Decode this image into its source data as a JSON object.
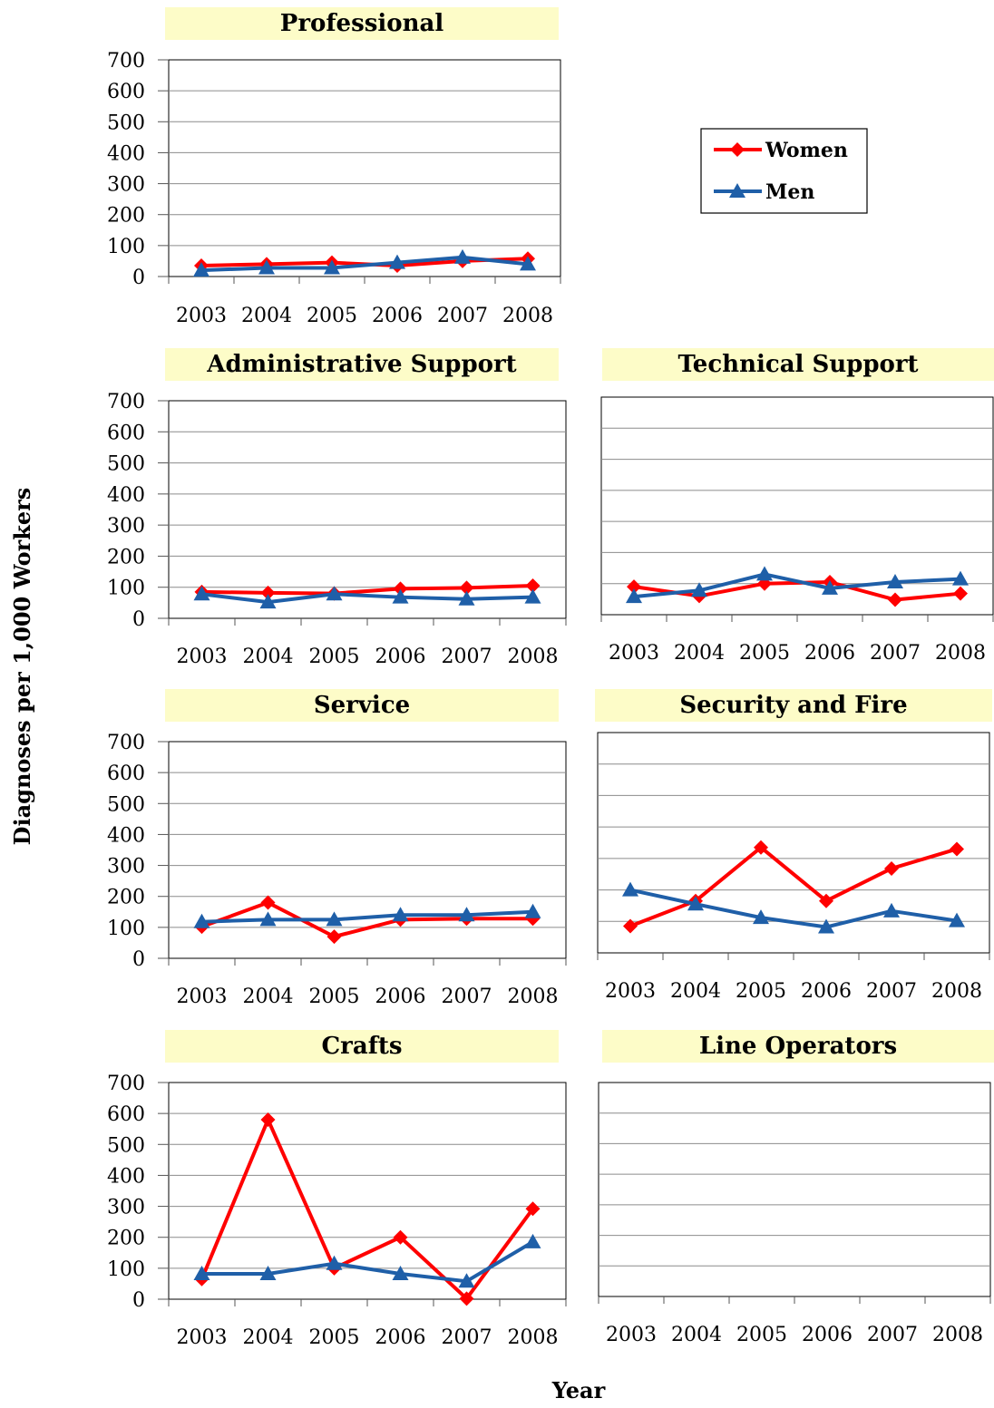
{
  "y_axis_title": "Diagnoses per 1,000 Workers",
  "x_axis_title": "Year",
  "legend": {
    "women": "Women",
    "men": "Men"
  },
  "colors": {
    "women": "#ff0000",
    "men": "#1f5fa8",
    "title_bg": "#fdfcc8",
    "grid": "#8c8c8c"
  },
  "chart_data": [
    {
      "type": "line",
      "title": "Professional",
      "categories": [
        "2003",
        "2004",
        "2005",
        "2006",
        "2007",
        "2008"
      ],
      "ylim": [
        0,
        700
      ],
      "yticks": [
        0,
        100,
        200,
        300,
        400,
        500,
        600,
        700
      ],
      "y_tick_labels_shown": true,
      "grid": true,
      "series": [
        {
          "name": "Women",
          "marker": "diamond",
          "values": [
            35,
            40,
            45,
            35,
            50,
            58
          ]
        },
        {
          "name": "Men",
          "marker": "triangle",
          "values": [
            20,
            28,
            28,
            45,
            62,
            40
          ]
        }
      ]
    },
    {
      "type": "line",
      "title": "Administrative Support",
      "categories": [
        "2003",
        "2004",
        "2005",
        "2006",
        "2007",
        "2008"
      ],
      "ylim": [
        0,
        700
      ],
      "yticks": [
        0,
        100,
        200,
        300,
        400,
        500,
        600,
        700
      ],
      "y_tick_labels_shown": true,
      "grid": true,
      "series": [
        {
          "name": "Women",
          "marker": "diamond",
          "values": [
            85,
            82,
            80,
            95,
            98,
            105
          ]
        },
        {
          "name": "Men",
          "marker": "triangle",
          "values": [
            78,
            52,
            78,
            68,
            62,
            68
          ]
        }
      ]
    },
    {
      "type": "line",
      "title": "Technical Support",
      "categories": [
        "2003",
        "2004",
        "2005",
        "2006",
        "2007",
        "2008"
      ],
      "ylim": [
        0,
        700
      ],
      "yticks": [
        0,
        100,
        200,
        300,
        400,
        500,
        600,
        700
      ],
      "y_tick_labels_shown": false,
      "grid": true,
      "series": [
        {
          "name": "Women",
          "marker": "diamond",
          "values": [
            90,
            60,
            100,
            105,
            48,
            68
          ]
        },
        {
          "name": "Men",
          "marker": "triangle",
          "values": [
            58,
            78,
            130,
            85,
            105,
            115
          ]
        }
      ]
    },
    {
      "type": "line",
      "title": "Service",
      "categories": [
        "2003",
        "2004",
        "2005",
        "2006",
        "2007",
        "2008"
      ],
      "ylim": [
        0,
        700
      ],
      "yticks": [
        0,
        100,
        200,
        300,
        400,
        500,
        600,
        700
      ],
      "y_tick_labels_shown": true,
      "grid": true,
      "series": [
        {
          "name": "Women",
          "marker": "diamond",
          "values": [
            102,
            180,
            70,
            125,
            128,
            128
          ]
        },
        {
          "name": "Men",
          "marker": "triangle",
          "values": [
            118,
            125,
            125,
            140,
            140,
            150
          ]
        }
      ]
    },
    {
      "type": "line",
      "title": "Security and Fire",
      "categories": [
        "2003",
        "2004",
        "2005",
        "2006",
        "2007",
        "2008"
      ],
      "ylim": [
        0,
        700
      ],
      "yticks": [
        0,
        100,
        200,
        300,
        400,
        500,
        600,
        700
      ],
      "y_tick_labels_shown": false,
      "grid": true,
      "series": [
        {
          "name": "Women",
          "marker": "diamond",
          "values": [
            85,
            165,
            335,
            165,
            268,
            330
          ]
        },
        {
          "name": "Men",
          "marker": "triangle",
          "values": [
            200,
            155,
            112,
            82,
            133,
            102
          ]
        }
      ]
    },
    {
      "type": "line",
      "title": "Crafts",
      "categories": [
        "2003",
        "2004",
        "2005",
        "2006",
        "2007",
        "2008"
      ],
      "ylim": [
        0,
        700
      ],
      "yticks": [
        0,
        100,
        200,
        300,
        400,
        500,
        600,
        700
      ],
      "y_tick_labels_shown": true,
      "grid": true,
      "series": [
        {
          "name": "Women",
          "marker": "diamond",
          "values": [
            65,
            580,
            100,
            200,
            2,
            292
          ]
        },
        {
          "name": "Men",
          "marker": "triangle",
          "values": [
            82,
            82,
            115,
            82,
            58,
            185
          ]
        }
      ]
    },
    {
      "type": "line",
      "title": "Line Operators",
      "categories": [
        "2003",
        "2004",
        "2005",
        "2006",
        "2007",
        "2008"
      ],
      "ylim": [
        0,
        700
      ],
      "yticks": [
        0,
        100,
        200,
        300,
        400,
        500,
        600,
        700
      ],
      "y_tick_labels_shown": false,
      "grid": true,
      "series": []
    }
  ]
}
